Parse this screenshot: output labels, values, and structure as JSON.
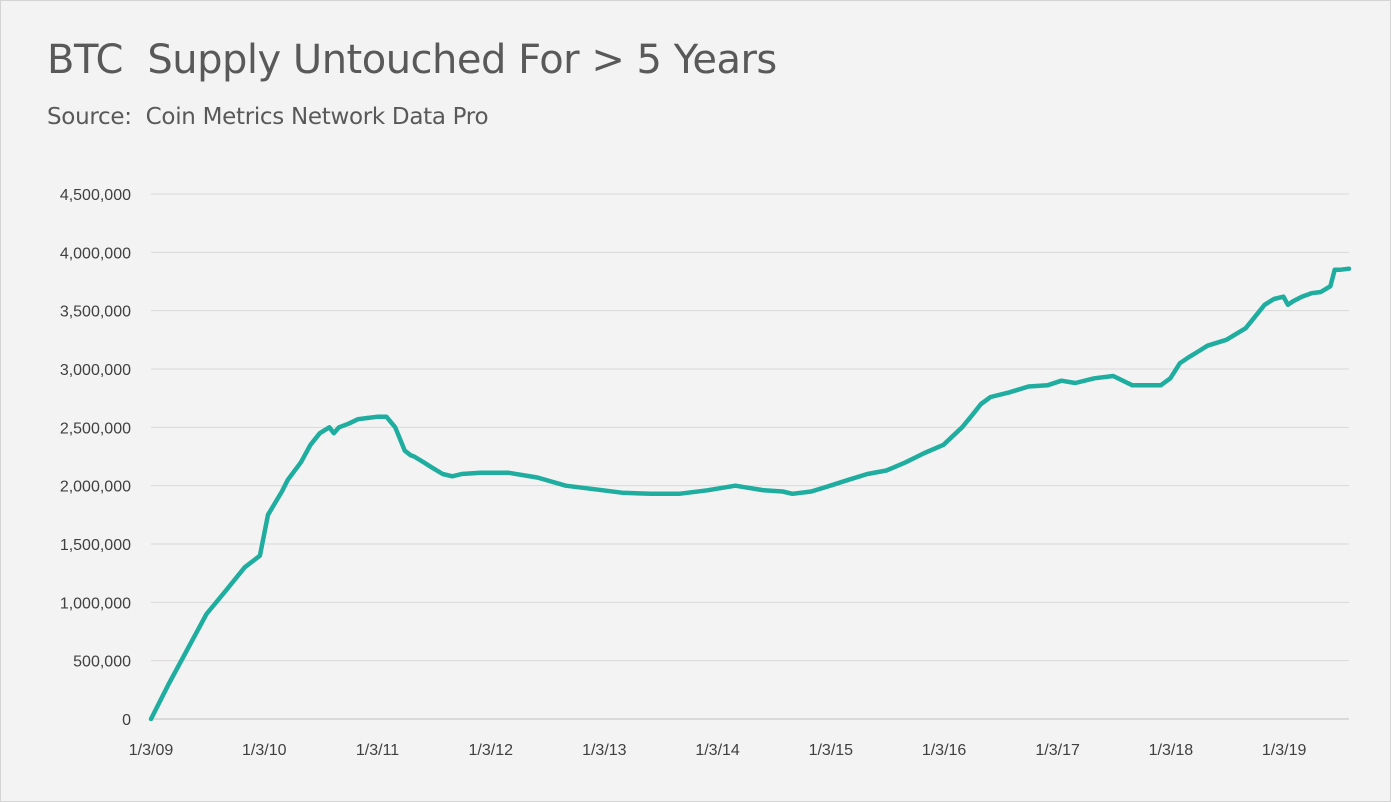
{
  "chart_data": {
    "type": "line",
    "title": "BTC  Supply Untouched For > 5 Years",
    "subtitle": "Source:  Coin Metrics Network Data Pro",
    "xlabel": "",
    "ylabel": "",
    "ylim": [
      0,
      4500000
    ],
    "yticks": [
      0,
      500000,
      1000000,
      1500000,
      2000000,
      2500000,
      3000000,
      3500000,
      4000000,
      4500000
    ],
    "ytick_labels": [
      "0",
      "500,000",
      "1,000,000",
      "1,500,000",
      "2,000,000",
      "2,500,000",
      "3,000,000",
      "3,500,000",
      "4,000,000",
      "4,500,000"
    ],
    "xlim": [
      "2009-01-03",
      "2019-07-31"
    ],
    "xticks": [
      "2009-01-03",
      "2010-01-03",
      "2011-01-03",
      "2012-01-03",
      "2013-01-03",
      "2014-01-03",
      "2015-01-03",
      "2016-01-03",
      "2017-01-03",
      "2018-01-03",
      "2019-01-03"
    ],
    "xtick_labels": [
      "1/3/09",
      "1/3/10",
      "1/3/11",
      "1/3/12",
      "1/3/13",
      "1/3/14",
      "1/3/15",
      "1/3/16",
      "1/3/17",
      "1/3/18",
      "1/3/19"
    ],
    "grid": true,
    "legend": "none",
    "line_color": "#1fada0",
    "series": [
      {
        "x": [
          "2009-01-03",
          "2009-03-01",
          "2009-05-01",
          "2009-07-01",
          "2009-09-01",
          "2009-11-01",
          "2009-12-20",
          "2010-01-15",
          "2010-03-01",
          "2010-03-20",
          "2010-05-01",
          "2010-06-01",
          "2010-07-01",
          "2010-08-01",
          "2010-08-15",
          "2010-09-01",
          "2010-10-01",
          "2010-11-01",
          "2010-12-01",
          "2011-01-01",
          "2011-02-01",
          "2011-03-01",
          "2011-04-01",
          "2011-04-20",
          "2011-05-01",
          "2011-06-01",
          "2011-07-01",
          "2011-08-01",
          "2011-09-01",
          "2011-10-01",
          "2011-12-01",
          "2012-03-01",
          "2012-06-01",
          "2012-09-01",
          "2012-12-01",
          "2013-03-01",
          "2013-06-01",
          "2013-09-01",
          "2013-12-01",
          "2014-03-01",
          "2014-06-01",
          "2014-08-01",
          "2014-09-01",
          "2014-11-01",
          "2015-01-01",
          "2015-03-01",
          "2015-05-01",
          "2015-07-01",
          "2015-09-01",
          "2015-11-01",
          "2016-01-01",
          "2016-03-01",
          "2016-04-01",
          "2016-05-01",
          "2016-06-01",
          "2016-08-01",
          "2016-10-01",
          "2016-12-01",
          "2017-01-15",
          "2017-03-01",
          "2017-05-01",
          "2017-07-01",
          "2017-09-01",
          "2017-10-01",
          "2017-11-01",
          "2017-12-01",
          "2018-01-01",
          "2018-02-01",
          "2018-03-01",
          "2018-04-01",
          "2018-05-01",
          "2018-07-01",
          "2018-09-01",
          "2018-11-01",
          "2018-12-01",
          "2019-01-01",
          "2019-01-15",
          "2019-02-01",
          "2019-03-01",
          "2019-04-01",
          "2019-05-01",
          "2019-06-01",
          "2019-06-15",
          "2019-07-01",
          "2019-07-31"
        ],
        "values": [
          0,
          300000,
          600000,
          900000,
          1100000,
          1300000,
          1400000,
          1750000,
          1950000,
          2050000,
          2200000,
          2350000,
          2450000,
          2500000,
          2450000,
          2500000,
          2530000,
          2570000,
          2580000,
          2590000,
          2590000,
          2500000,
          2300000,
          2260000,
          2250000,
          2200000,
          2150000,
          2100000,
          2080000,
          2100000,
          2110000,
          2110000,
          2070000,
          2000000,
          1970000,
          1940000,
          1930000,
          1930000,
          1960000,
          2000000,
          1960000,
          1950000,
          1930000,
          1950000,
          2000000,
          2050000,
          2100000,
          2130000,
          2200000,
          2280000,
          2350000,
          2500000,
          2600000,
          2700000,
          2760000,
          2800000,
          2850000,
          2860000,
          2900000,
          2880000,
          2920000,
          2940000,
          2860000,
          2860000,
          2860000,
          2860000,
          2920000,
          3050000,
          3100000,
          3150000,
          3200000,
          3250000,
          3350000,
          3550000,
          3600000,
          3620000,
          3550000,
          3580000,
          3620000,
          3650000,
          3660000,
          3710000,
          3850000,
          3850000,
          3860000
        ]
      }
    ]
  }
}
